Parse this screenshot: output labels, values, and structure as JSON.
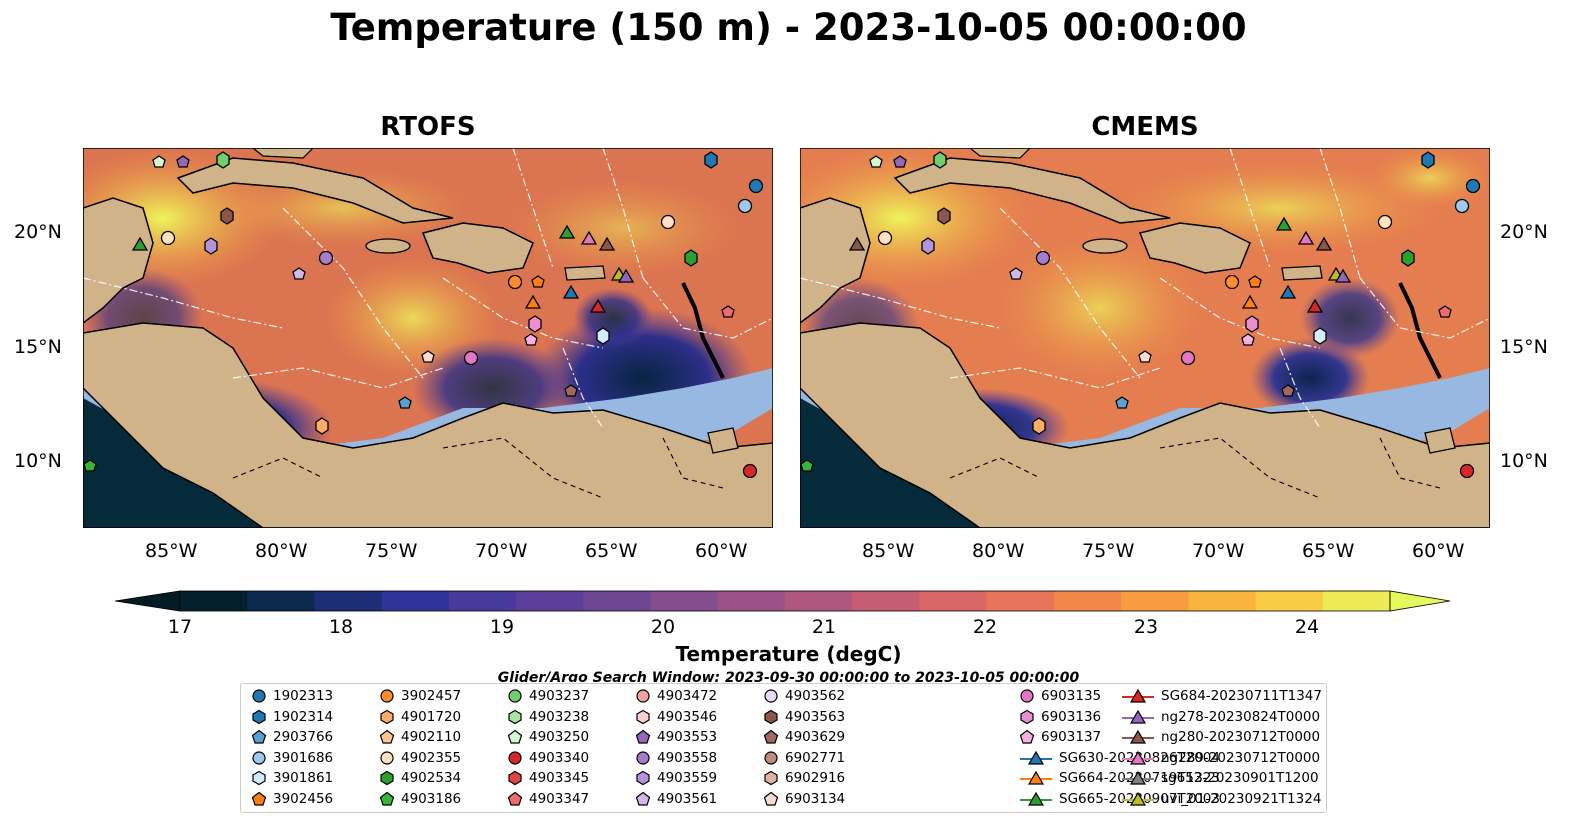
{
  "title": "Temperature (150 m) - 2023-10-05 00:00:00",
  "panels": [
    {
      "title": "RTOFS"
    },
    {
      "title": "CMEMS"
    }
  ],
  "lon_ticks": [
    "85°W",
    "80°W",
    "75°W",
    "70°W",
    "65°W",
    "60°W"
  ],
  "lat_ticks": [
    "20°N",
    "15°N",
    "10°N"
  ],
  "colorbar": {
    "label": "Temperature (degC)",
    "ticks": [
      "17",
      "18",
      "19",
      "20",
      "21",
      "22",
      "23",
      "24"
    ],
    "range": [
      16.75,
      24.5
    ],
    "colors": [
      "#04202c",
      "#0b2a4e",
      "#1d2e77",
      "#30339a",
      "#483a9c",
      "#5c3f98",
      "#6e4793",
      "#844d8e",
      "#9a5287",
      "#b0577f",
      "#c65d73",
      "#d96766",
      "#e8745a",
      "#f3874b",
      "#f79c41",
      "#f9b43c",
      "#f7cb43",
      "#edea58"
    ],
    "extend_low": "#041a24",
    "extend_high": "#e6f95c"
  },
  "search_window": "Glider/Argo Search Window: 2023-09-30 00:00:00 to 2023-10-05 00:00:00",
  "legend": [
    {
      "label": "1902313",
      "marker": "circle",
      "color": "#1f77b4"
    },
    {
      "label": "1902314",
      "marker": "hexagon",
      "color": "#1f77b4"
    },
    {
      "label": "2903766",
      "marker": "pentagon",
      "color": "#5ca0d3"
    },
    {
      "label": "3901686",
      "marker": "circle",
      "color": "#9ec9ef"
    },
    {
      "label": "3901861",
      "marker": "hexagon",
      "color": "#d3ebff"
    },
    {
      "label": "3902456",
      "marker": "pentagon",
      "color": "#ff7f0e"
    },
    {
      "label": "3902457",
      "marker": "circle",
      "color": "#ff8c2a"
    },
    {
      "label": "4901720",
      "marker": "hexagon",
      "color": "#ffad66"
    },
    {
      "label": "4902110",
      "marker": "pentagon",
      "color": "#ffc48f"
    },
    {
      "label": "4902355",
      "marker": "circle",
      "color": "#ffe0c0"
    },
    {
      "label": "4902534",
      "marker": "hexagon",
      "color": "#2ca02c"
    },
    {
      "label": "4903186",
      "marker": "pentagon",
      "color": "#38b538"
    },
    {
      "label": "4903237",
      "marker": "circle",
      "color": "#6fcf6f"
    },
    {
      "label": "4903238",
      "marker": "hexagon",
      "color": "#a6e6a0"
    },
    {
      "label": "4903250",
      "marker": "pentagon",
      "color": "#d3f7cf"
    },
    {
      "label": "4903340",
      "marker": "circle",
      "color": "#d62728"
    },
    {
      "label": "4903345",
      "marker": "hexagon",
      "color": "#e04444"
    },
    {
      "label": "4903347",
      "marker": "pentagon",
      "color": "#ec6b6b"
    },
    {
      "label": "4903472",
      "marker": "circle",
      "color": "#f2a1a1"
    },
    {
      "label": "4903546",
      "marker": "hexagon",
      "color": "#fbd2d2"
    },
    {
      "label": "4903553",
      "marker": "pentagon",
      "color": "#9467bd"
    },
    {
      "label": "4903558",
      "marker": "circle",
      "color": "#a57ccc"
    },
    {
      "label": "4903559",
      "marker": "hexagon",
      "color": "#b592db"
    },
    {
      "label": "4903561",
      "marker": "pentagon",
      "color": "#d0b8eb"
    },
    {
      "label": "4903562",
      "marker": "circle",
      "color": "#e7d9f7"
    },
    {
      "label": "4903563",
      "marker": "hexagon",
      "color": "#8c564b"
    },
    {
      "label": "4903629",
      "marker": "pentagon",
      "color": "#9e6a5f"
    },
    {
      "label": "6902771",
      "marker": "circle",
      "color": "#c08b7f"
    },
    {
      "label": "6902916",
      "marker": "hexagon",
      "color": "#e0b3a6"
    },
    {
      "label": "6903134",
      "marker": "pentagon",
      "color": "#f7dcd2"
    },
    {
      "label": "6903135",
      "marker": "circle",
      "color": "#e377c2"
    },
    {
      "label": "6903136",
      "marker": "hexagon",
      "color": "#eb8fd1"
    },
    {
      "label": "6903137",
      "marker": "pentagon",
      "color": "#f6b0e2"
    },
    {
      "label": "SG630-20230826T2004",
      "marker": "triangle-line",
      "color": "#1f77b4"
    },
    {
      "label": "SG664-20230719T1323",
      "marker": "triangle-line",
      "color": "#ff7f0e"
    },
    {
      "label": "SG665-20230907T2003",
      "marker": "triangle-line",
      "color": "#2ca02c"
    },
    {
      "label": "SG684-20230711T1347",
      "marker": "triangle-line",
      "color": "#d62728"
    },
    {
      "label": "ng278-20230824T0000",
      "marker": "triangle-line",
      "color": "#9467bd"
    },
    {
      "label": "ng280-20230712T0000",
      "marker": "triangle-line",
      "color": "#8c564b"
    },
    {
      "label": "ng289-20230712T0000",
      "marker": "triangle-line",
      "color": "#e377c2"
    },
    {
      "label": "sg652-20230901T1200",
      "marker": "triangle-line",
      "color": "#7f7f7f"
    },
    {
      "label": "uvi_01-20230921T1324",
      "marker": "triangle-line",
      "color": "#bcbd22"
    }
  ],
  "map_colors": {
    "land": "#d1b38a",
    "shelf": "#97b8e0",
    "deep_pacific": "#052a3a"
  }
}
